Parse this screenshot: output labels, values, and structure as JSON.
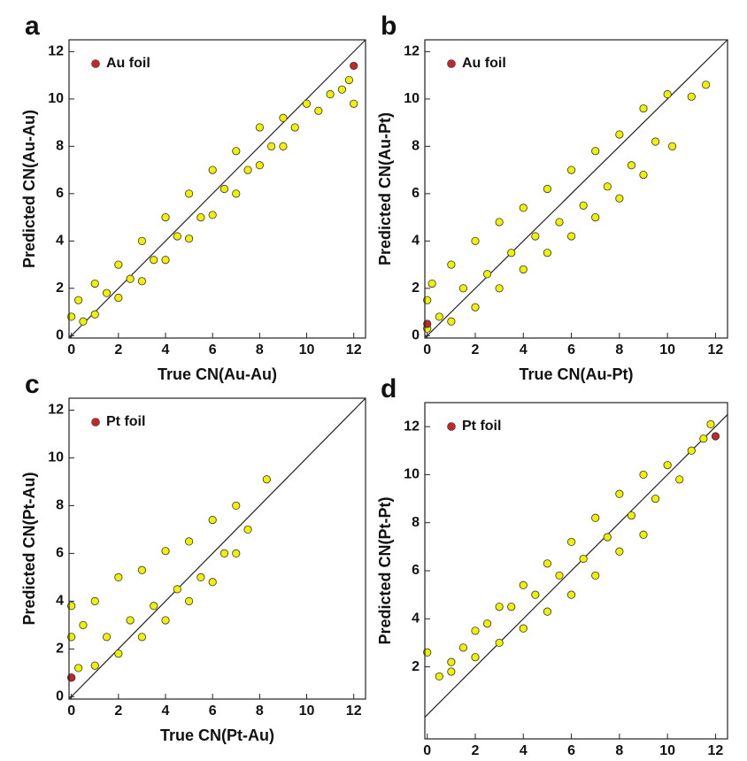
{
  "chart_data": [
    {
      "type": "scatter",
      "label": "a",
      "xlabel": "True CN(Au-Au)",
      "ylabel": "Predicted CN(Au-Au)",
      "xlim": [
        -0.1,
        12.5
      ],
      "ylim": [
        -0.1,
        12.5
      ],
      "xticks": [
        0,
        2,
        4,
        6,
        8,
        10,
        12
      ],
      "yticks": [
        0,
        2,
        4,
        6,
        8,
        10,
        12
      ],
      "series": [
        {
          "color": "#f0f000",
          "x": [
            0,
            0.3,
            0.5,
            1,
            1,
            1.5,
            2,
            2,
            2.5,
            3,
            3,
            3.5,
            4,
            4,
            4.5,
            5,
            5,
            5.5,
            6,
            6,
            6.5,
            7,
            7,
            7.5,
            8,
            8,
            8.5,
            9,
            9,
            9.5,
            10,
            10.5,
            11,
            11.5,
            11.8,
            12
          ],
          "values": [
            0.8,
            1.5,
            0.6,
            2.2,
            0.9,
            1.8,
            3.0,
            1.6,
            2.4,
            4.0,
            2.3,
            3.2,
            5.0,
            3.2,
            4.2,
            6.0,
            4.1,
            5.0,
            7.0,
            5.1,
            6.2,
            7.8,
            6.0,
            7.0,
            8.8,
            7.2,
            8.0,
            9.2,
            8.0,
            8.8,
            9.8,
            9.5,
            10.2,
            10.4,
            10.8,
            9.8
          ]
        },
        {
          "name": "Au foil",
          "color": "#c0282a",
          "x": [
            12
          ],
          "values": [
            11.4
          ]
        }
      ]
    },
    {
      "type": "scatter",
      "label": "b",
      "xlabel": "True CN(Au-Pt)",
      "ylabel": "Predicted CN(Au-Pt)",
      "xlim": [
        -0.1,
        12.5
      ],
      "ylim": [
        -0.1,
        12.5
      ],
      "xticks": [
        0,
        2,
        4,
        6,
        8,
        10,
        12
      ],
      "yticks": [
        0,
        2,
        4,
        6,
        8,
        10,
        12
      ],
      "series": [
        {
          "color": "#f0f000",
          "x": [
            0,
            0,
            0.2,
            0.5,
            1,
            1,
            1.5,
            2,
            2,
            2.5,
            3,
            3,
            3.5,
            4,
            4,
            4.5,
            5,
            5,
            5.5,
            6,
            6,
            6.5,
            7,
            7,
            7.5,
            8,
            8,
            8.5,
            9,
            9,
            9.5,
            10,
            10.2,
            11,
            11.6
          ],
          "values": [
            0.3,
            1.5,
            2.2,
            0.8,
            3.0,
            0.6,
            2.0,
            4.0,
            1.2,
            2.6,
            4.8,
            2.0,
            3.5,
            5.4,
            2.8,
            4.2,
            6.2,
            3.5,
            4.8,
            7.0,
            4.2,
            5.5,
            7.8,
            5.0,
            6.3,
            8.5,
            5.8,
            7.2,
            9.6,
            6.8,
            8.2,
            10.2,
            8.0,
            10.1,
            10.6
          ]
        },
        {
          "name": "Au foil",
          "color": "#c0282a",
          "x": [
            0
          ],
          "values": [
            0.5
          ]
        }
      ]
    },
    {
      "type": "scatter",
      "label": "c",
      "xlabel": "True CN(Pt-Au)",
      "ylabel": "Predicted CN(Pt-Au)",
      "xlim": [
        -0.1,
        12.5
      ],
      "ylim": [
        -0.1,
        12.5
      ],
      "xticks": [
        0,
        2,
        4,
        6,
        8,
        10,
        12
      ],
      "yticks": [
        0,
        2,
        4,
        6,
        8,
        10,
        12
      ],
      "series": [
        {
          "color": "#f0f000",
          "x": [
            0,
            0,
            0,
            0.3,
            0.5,
            1,
            1,
            1.5,
            2,
            2,
            2.5,
            3,
            3,
            3.5,
            4,
            4,
            4.5,
            5,
            5,
            5.5,
            6,
            6,
            6.5,
            7,
            7,
            7.5,
            8.3
          ],
          "values": [
            0.8,
            2.5,
            3.8,
            1.2,
            3.0,
            1.3,
            4.0,
            2.5,
            1.8,
            5.0,
            3.2,
            2.5,
            5.3,
            3.8,
            3.2,
            6.1,
            4.5,
            4.0,
            6.5,
            5.0,
            4.8,
            7.4,
            6.0,
            6.0,
            8.0,
            7.0,
            9.1
          ]
        },
        {
          "name": "Pt foil",
          "color": "#c0282a",
          "x": [
            0
          ],
          "values": [
            0.8
          ]
        }
      ]
    },
    {
      "type": "scatter",
      "label": "d",
      "xlabel": "True CN(Pt-Pt)",
      "ylabel": "Predicted CN(Pt-Pt)",
      "xlim": [
        -0.1,
        12.5
      ],
      "ylim": [
        -1,
        13
      ],
      "xticks": [
        0,
        2,
        4,
        6,
        8,
        10,
        12
      ],
      "yticks": [
        2,
        4,
        6,
        8,
        10,
        12
      ],
      "series": [
        {
          "color": "#f0f000",
          "x": [
            0,
            0.5,
            1,
            1,
            1.5,
            2,
            2,
            2.5,
            3,
            3,
            3.5,
            4,
            4,
            4.5,
            5,
            5,
            5.5,
            6,
            6,
            6.5,
            7,
            7,
            7.5,
            8,
            8,
            8.5,
            9,
            9,
            9.5,
            10,
            10.5,
            11,
            11.5,
            11.8
          ],
          "values": [
            2.6,
            1.6,
            2.2,
            1.8,
            2.8,
            3.5,
            2.4,
            3.8,
            4.5,
            3.0,
            4.5,
            5.4,
            3.6,
            5.0,
            6.3,
            4.3,
            5.8,
            7.2,
            5.0,
            6.5,
            8.2,
            5.8,
            7.4,
            9.2,
            6.8,
            8.3,
            10.0,
            7.5,
            9.0,
            10.4,
            9.8,
            11.0,
            11.5,
            12.1
          ]
        },
        {
          "name": "Pt foil",
          "color": "#c0282a",
          "x": [
            12
          ],
          "values": [
            11.6
          ]
        }
      ]
    }
  ]
}
